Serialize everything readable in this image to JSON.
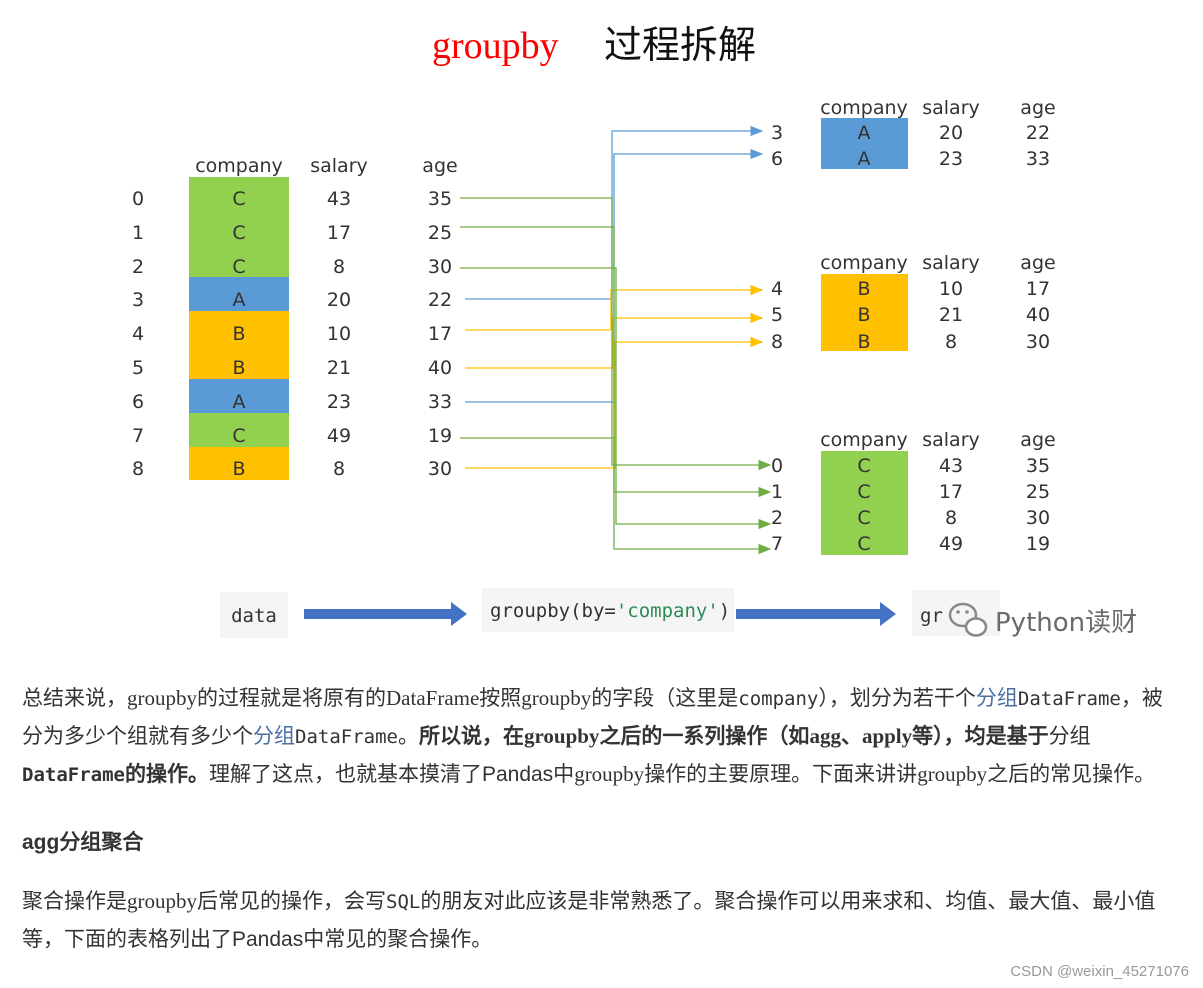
{
  "title": {
    "en": "groupby",
    "cn": "过程拆解"
  },
  "source_table": {
    "headers": [
      "company",
      "salary",
      "age"
    ],
    "rows": [
      {
        "idx": "0",
        "company": "C",
        "salary": "43",
        "age": "35"
      },
      {
        "idx": "1",
        "company": "C",
        "salary": "17",
        "age": "25"
      },
      {
        "idx": "2",
        "company": "C",
        "salary": "8",
        "age": "30"
      },
      {
        "idx": "3",
        "company": "A",
        "salary": "20",
        "age": "22"
      },
      {
        "idx": "4",
        "company": "B",
        "salary": "10",
        "age": "17"
      },
      {
        "idx": "5",
        "company": "B",
        "salary": "21",
        "age": "40"
      },
      {
        "idx": "6",
        "company": "A",
        "salary": "23",
        "age": "33"
      },
      {
        "idx": "7",
        "company": "C",
        "salary": "49",
        "age": "19"
      },
      {
        "idx": "8",
        "company": "B",
        "salary": "8",
        "age": "30"
      }
    ]
  },
  "groups": [
    {
      "key": "A",
      "headers": [
        "company",
        "salary",
        "age"
      ],
      "rows": [
        {
          "idx": "3",
          "company": "A",
          "salary": "20",
          "age": "22"
        },
        {
          "idx": "6",
          "company": "A",
          "salary": "23",
          "age": "33"
        }
      ]
    },
    {
      "key": "B",
      "headers": [
        "company",
        "salary",
        "age"
      ],
      "rows": [
        {
          "idx": "4",
          "company": "B",
          "salary": "10",
          "age": "17"
        },
        {
          "idx": "5",
          "company": "B",
          "salary": "21",
          "age": "40"
        },
        {
          "idx": "8",
          "company": "B",
          "salary": "8",
          "age": "30"
        }
      ]
    },
    {
      "key": "C",
      "headers": [
        "company",
        "salary",
        "age"
      ],
      "rows": [
        {
          "idx": "0",
          "company": "C",
          "salary": "43",
          "age": "35"
        },
        {
          "idx": "1",
          "company": "C",
          "salary": "17",
          "age": "25"
        },
        {
          "idx": "2",
          "company": "C",
          "salary": "8",
          "age": "30"
        },
        {
          "idx": "7",
          "company": "C",
          "salary": "49",
          "age": "19"
        }
      ]
    }
  ],
  "colors": {
    "A": "#5b9bd5",
    "B": "#ffc000",
    "C": "#92d050",
    "arrow": "#4472c4",
    "title": "#ff0000"
  },
  "flow": {
    "data_label": "data",
    "call_prefix": "groupby(by=",
    "call_arg": "'company'",
    "call_suffix": ")",
    "result_label": "gr"
  },
  "watermark": "Python读财",
  "article": {
    "p1": {
      "s1": "总结来说，",
      "c1": "groupby",
      "s2": "的过程就是将原有的",
      "c2": "DataFrame",
      "s3": "按照",
      "c3": "groupby",
      "s4": "的字段（这里是",
      "c4": "company",
      "s5": "），划分为若干个",
      "s6": "分组",
      "c5": "DataFrame",
      "s7": "，被分为多少个组就有多少个",
      "s8": "分组",
      "c6": "DataFrame",
      "s9": "。",
      "b1": "所以说，在",
      "bc1": "groupby",
      "b2": "之后的一系列操作（如",
      "bc2": "agg",
      "b3": "、",
      "bc3": "apply",
      "b4": "等），均是基于",
      "b5": "分组",
      "bc4": "DataFrame",
      "b6": "的操作。",
      "s10": "理解了这点，也就基本摸清了Pandas中",
      "c7": "groupby",
      "s11": "操作的主要原理。下面来讲讲",
      "c8": "groupby",
      "s12": "之后的常见操作。"
    },
    "heading": "agg分组聚合",
    "p2": {
      "s1": "聚合操作是",
      "c1": "groupby",
      "s2": "后常见的操作，会写",
      "c2": "SQL",
      "s3": "的朋友对此应该是非常熟悉了。聚合操作可以用来求和、均值、最大值、最小值等，下面的表格列出了Pandas中常见的聚合操作。"
    }
  },
  "footer": "CSDN @weixin_45271076"
}
